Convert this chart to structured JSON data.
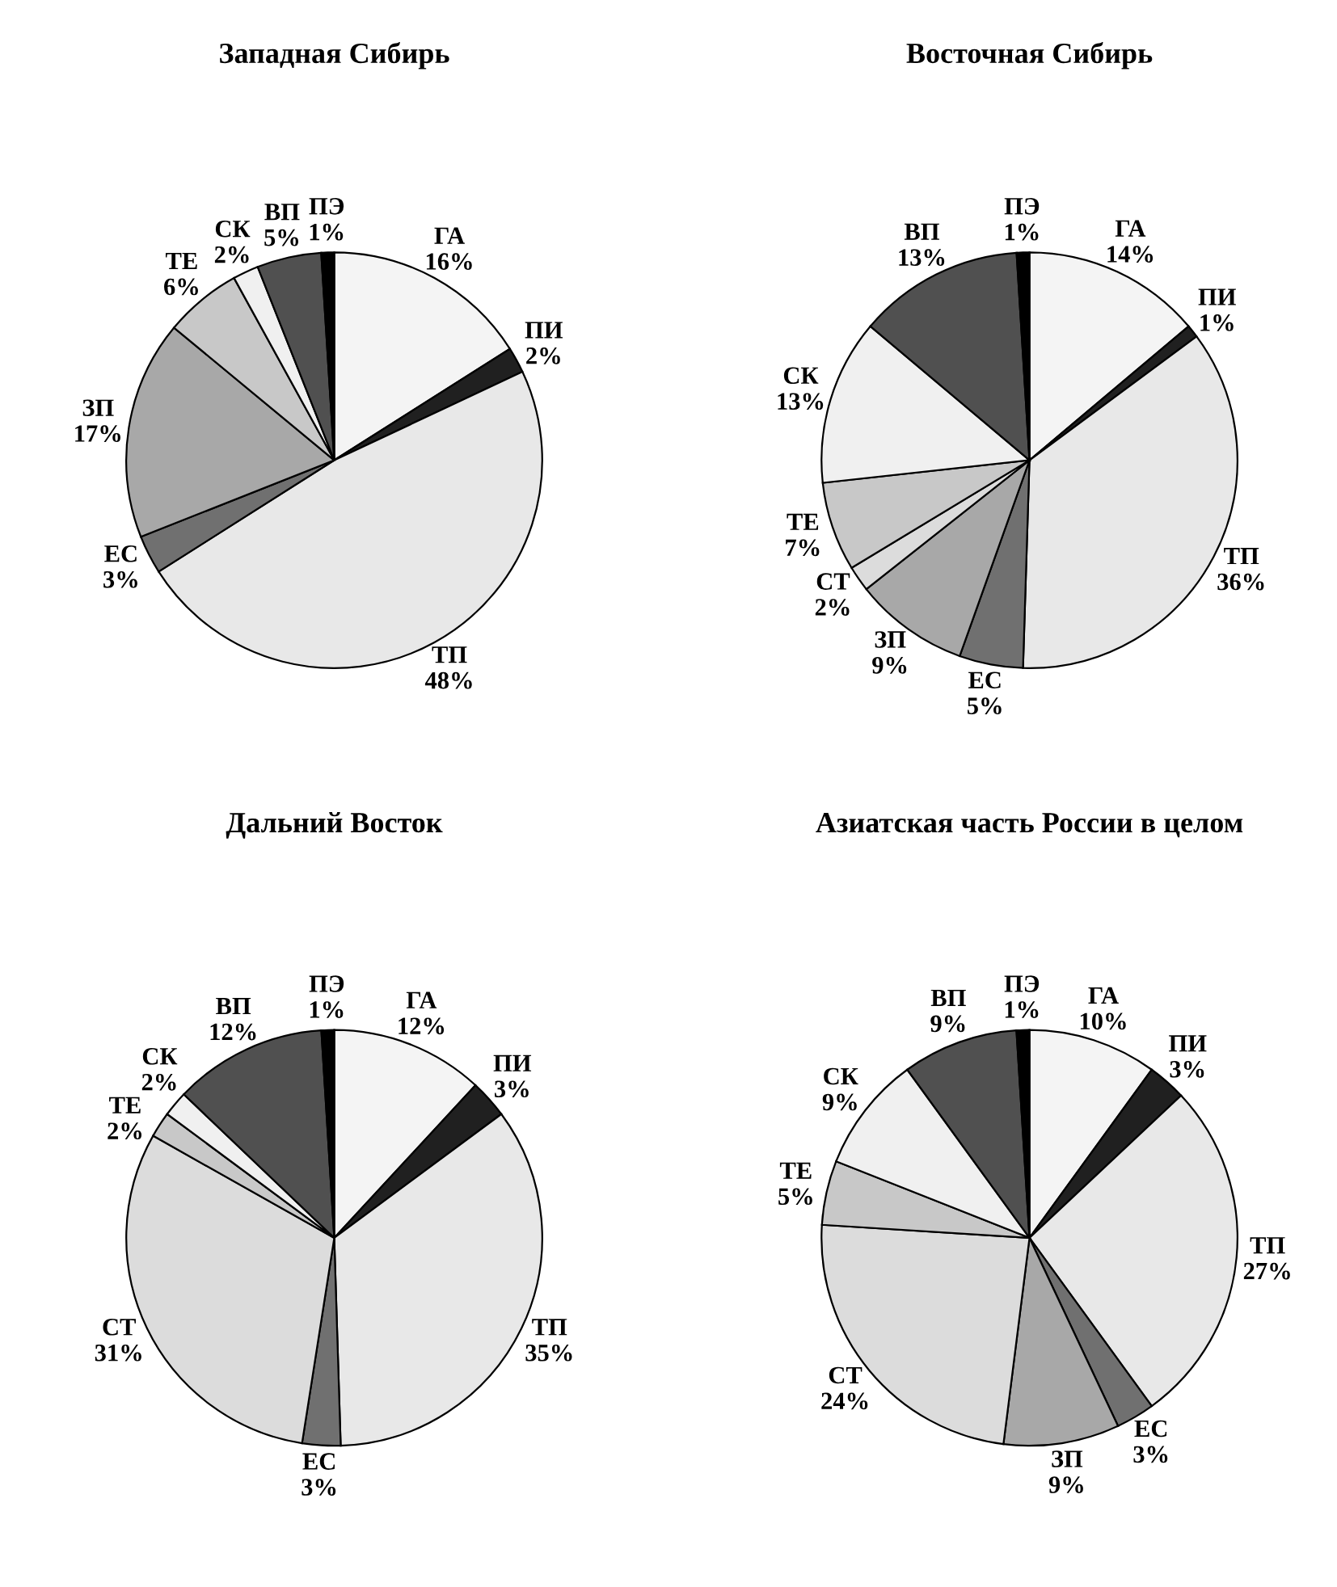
{
  "chart_data": [
    {
      "type": "pie",
      "title": "Западная Сибирь",
      "categories": [
        "ГА",
        "ПИ",
        "ТП",
        "ЕС",
        "ЗП",
        "ТЕ",
        "СК",
        "ВП",
        "ПЭ"
      ],
      "values": [
        16,
        2,
        48,
        3,
        17,
        6,
        2,
        5,
        1
      ],
      "value_labels": [
        "16%",
        "2%",
        "48%",
        "3%",
        "17%",
        "6%",
        "2%",
        "5%",
        "1%"
      ],
      "colors": [
        "#f4f4f4",
        "#202020",
        "#e8e8e8",
        "#707070",
        "#a8a8a8",
        "#c8c8c8",
        "#f0f0f0",
        "#505050",
        "#000000"
      ]
    },
    {
      "type": "pie",
      "title": "Восточная Сибирь",
      "categories": [
        "ГА",
        "ПИ",
        "ТП",
        "ЕС",
        "ЗП",
        "СТ",
        "ТЕ",
        "СК",
        "ВП",
        "ПЭ"
      ],
      "values": [
        14,
        1,
        36,
        5,
        9,
        2,
        7,
        13,
        13,
        1
      ],
      "value_labels": [
        "14%",
        "1%",
        "36%",
        "5%",
        "9%",
        "2%",
        "7%",
        "13%",
        "13%",
        "1%"
      ],
      "colors": [
        "#f4f4f4",
        "#202020",
        "#e8e8e8",
        "#707070",
        "#a8a8a8",
        "#dcdcdc",
        "#c8c8c8",
        "#f0f0f0",
        "#505050",
        "#000000"
      ]
    },
    {
      "type": "pie",
      "title": "Дальний Восток",
      "categories": [
        "ГА",
        "ПИ",
        "ТП",
        "ЕС",
        "СТ",
        "ТЕ",
        "СК",
        "ВП",
        "ПЭ"
      ],
      "values": [
        12,
        3,
        35,
        3,
        31,
        2,
        2,
        12,
        1
      ],
      "value_labels": [
        "12%",
        "3%",
        "35%",
        "3%",
        "31%",
        "2%",
        "2%",
        "12%",
        "1%"
      ],
      "colors": [
        "#f4f4f4",
        "#202020",
        "#e8e8e8",
        "#707070",
        "#dcdcdc",
        "#c8c8c8",
        "#f0f0f0",
        "#505050",
        "#000000"
      ]
    },
    {
      "type": "pie",
      "title": "Азиатская часть России в целом",
      "categories": [
        "ГА",
        "ПИ",
        "ТП",
        "ЕС",
        "ЗП",
        "СТ",
        "ТЕ",
        "СК",
        "ВП",
        "ПЭ"
      ],
      "values": [
        10,
        3,
        27,
        3,
        9,
        24,
        5,
        9,
        9,
        1
      ],
      "value_labels": [
        "10%",
        "3%",
        "27%",
        "3%",
        "9%",
        "24%",
        "5%",
        "9%",
        "9%",
        "1%"
      ],
      "colors": [
        "#f4f4f4",
        "#202020",
        "#e8e8e8",
        "#707070",
        "#a8a8a8",
        "#dcdcdc",
        "#c8c8c8",
        "#f0f0f0",
        "#505050",
        "#000000"
      ]
    }
  ]
}
